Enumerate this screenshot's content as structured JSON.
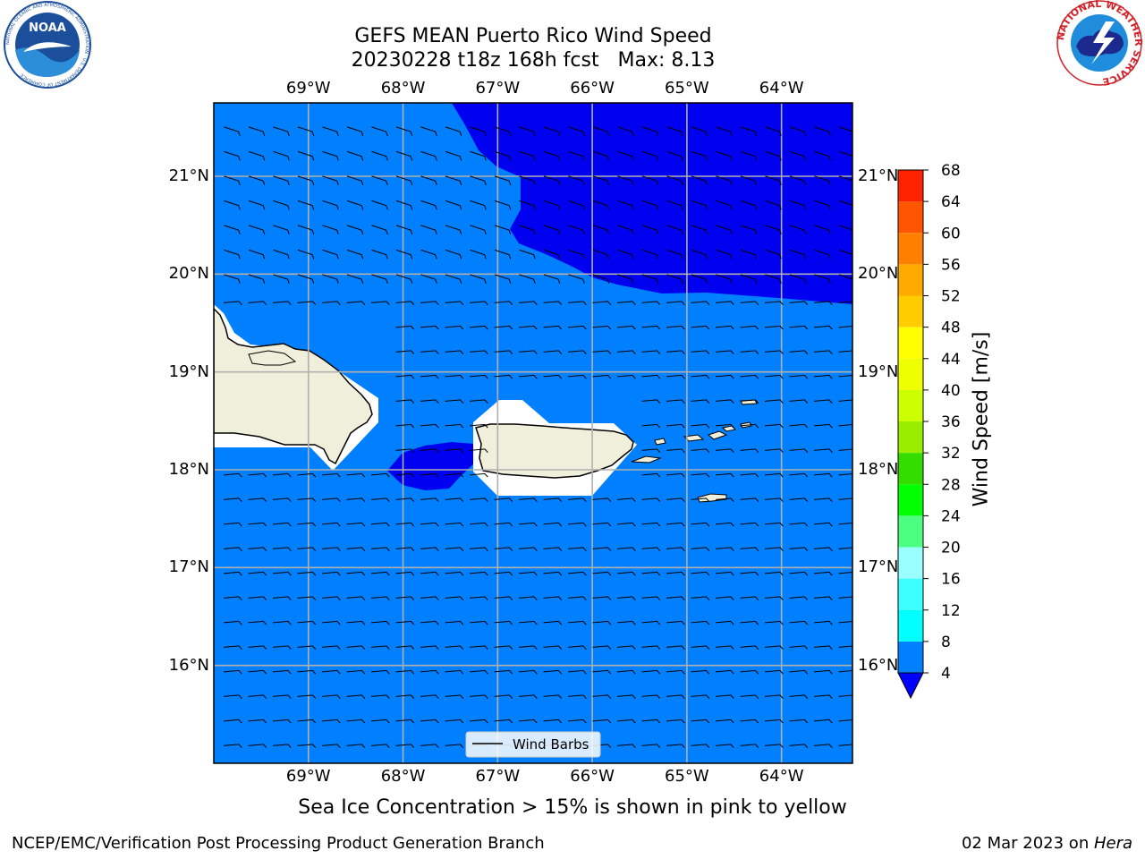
{
  "header": {
    "title_line1": "GEFS MEAN Puerto Rico Wind Speed",
    "title_line2": "20230228 t18z 168h fcst   Max: 8.13"
  },
  "logos": {
    "left": {
      "icon": "noaa-logo",
      "text": "NOAA",
      "ring_text": "NATIONAL OCEANIC AND ATMOSPHERIC ADMINISTRATION · U.S. DEPARTMENT OF COMMERCE",
      "color": "#1b4f9c"
    },
    "right": {
      "icon": "nws-logo",
      "ring_text": "NATIONAL WEATHER SERVICE",
      "color": "#d2232a"
    }
  },
  "map": {
    "lon_labels": [
      "69°W",
      "68°W",
      "67°W",
      "66°W",
      "65°W",
      "64°W"
    ],
    "lat_labels": [
      "21°N",
      "20°N",
      "19°N",
      "18°N",
      "17°N",
      "16°N"
    ],
    "lon_values": [
      -69,
      -68,
      -67,
      -66,
      -65,
      -64
    ],
    "lat_values": [
      21,
      20,
      19,
      18,
      17,
      16
    ],
    "extent": {
      "lon_min": -70,
      "lon_max": -63.25,
      "lat_min": 15.0,
      "lat_max": 21.75
    },
    "legend_label": "Wind Barbs",
    "ocean_color": "#0080ff",
    "low_wind_color": "#0000f0",
    "land_color": "#efefdc",
    "grid_color": "#b0b0b0"
  },
  "colorbar": {
    "label": "Wind Speed [m/s]",
    "levels": [
      4,
      8,
      12,
      16,
      20,
      24,
      28,
      32,
      36,
      40,
      44,
      48,
      52,
      56,
      60,
      64,
      68
    ],
    "colors": [
      "#0080ff",
      "#00ffff",
      "#3cffff",
      "#99ffff",
      "#4dff80",
      "#00ff00",
      "#33dd00",
      "#99ee00",
      "#ccff00",
      "#eeff00",
      "#ffff00",
      "#ffcc00",
      "#ffaa00",
      "#ff8000",
      "#ff5500",
      "#ff2200"
    ],
    "under_color": "#0000ff",
    "level_labels": [
      "4",
      "8",
      "12",
      "16",
      "20",
      "24",
      "28",
      "32",
      "36",
      "40",
      "44",
      "48",
      "52",
      "56",
      "60",
      "64",
      "68"
    ]
  },
  "notes": {
    "sea_ice": "Sea Ice Concentration > 15% is shown in pink to yellow"
  },
  "footer": {
    "left": "NCEP/EMC/Verification Post Processing Product Generation Branch",
    "date": "02 Mar 2023 on ",
    "machine": "Hera"
  }
}
